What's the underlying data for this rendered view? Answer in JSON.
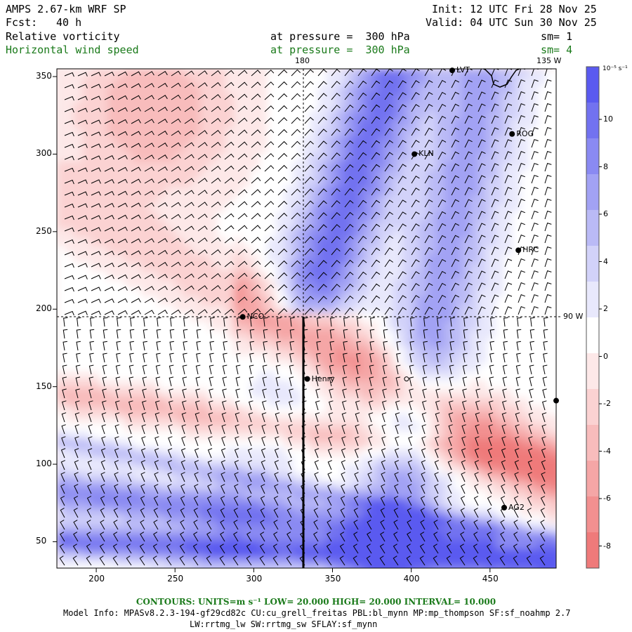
{
  "header": {
    "title": "AMPS 2.67-km WRF SP",
    "fcst_label": "Fcst:",
    "fcst_value": "40 h",
    "init": "Init: 12 UTC Fri 28 Nov 25",
    "valid": "Valid: 04 UTC Sun 30 Nov 25",
    "field1": "Relative vorticity",
    "field1_level": "at pressure =  300 hPa",
    "field1_sm": "sm= 1",
    "field2": "Horizontal wind speed",
    "field2_level": "at pressure =  300 hPa",
    "field2_sm": "sm= 4"
  },
  "map": {
    "top_labels": [
      "180",
      "135 W"
    ],
    "right_label": "90 W",
    "stations": [
      "LVT",
      "ROG",
      "KLN",
      "HRC",
      "NCO",
      "Henry",
      "AG2"
    ]
  },
  "chart_data": {
    "type": "heatmap",
    "title": "Relative vorticity / Horizontal wind speed at 300 hPa",
    "x_ticks": [
      200,
      250,
      300,
      350,
      400,
      450
    ],
    "y_ticks": [
      50,
      100,
      150,
      200,
      250,
      300,
      350
    ],
    "xlim": [
      175,
      492
    ],
    "ylim": [
      33,
      355
    ],
    "colorbar": {
      "units": "10⁻⁵ s⁻¹",
      "ticks": [
        "10",
        "8",
        "6",
        "4",
        "2",
        "0",
        "-2",
        "-4",
        "-6",
        "-8"
      ],
      "colors": [
        "#5a5af0",
        "#7272f0",
        "#8a8af2",
        "#a2a2f4",
        "#babaf6",
        "#d2d2f9",
        "#e8e8fc",
        "#ffffff",
        "#fde8e8",
        "#fbd2d2",
        "#f8bcbc",
        "#f5a6a6",
        "#f29090",
        "#ef7a7a"
      ]
    }
  },
  "footer": {
    "contours": "CONTOURS:  UNITS=m s⁻¹  LOW=  20.000      HIGH=  20.000      INTERVAL=   10.000",
    "model_info": "Model Info: MPASv8.2.3-194-gf29cd82c CU:cu_grell_freitas PBL:bl_mynn MP:mp_thompson SF:sf_noahmp 2.7",
    "model_info2": "LW:rrtmg_lw SW:rrtmg_sw SFLAY:sf_mynn"
  }
}
